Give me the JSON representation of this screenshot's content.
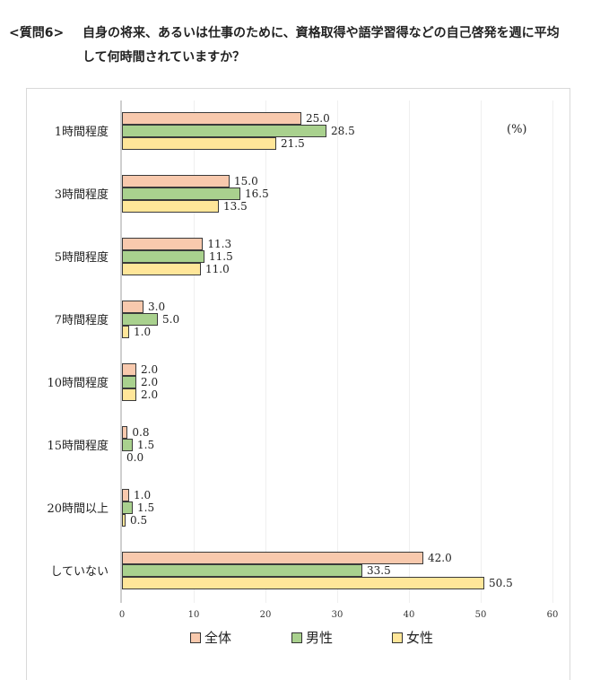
{
  "header": {
    "question_label": "<質問6>",
    "question_line1": "自身の将来、あるいは仕事のために、資格取得や語学習得などの自己啓発を週に平均",
    "question_line2": "して何時間されていますか？"
  },
  "chart": {
    "unit_label": "(%)",
    "colors": {
      "all": "#f8c9ad",
      "male": "#a9d18e",
      "female": "#ffe699"
    },
    "legend": [
      {
        "label": "全体",
        "color": "#f8c9ad"
      },
      {
        "label": "男性",
        "color": "#a9d18e"
      },
      {
        "label": "女性",
        "color": "#ffe699"
      }
    ],
    "ticks": [
      "0",
      "10",
      "20",
      "30",
      "40",
      "50",
      "60"
    ],
    "rows": [
      {
        "label": "1時間程度",
        "values": [
          "25.0",
          "28.5",
          "21.5"
        ]
      },
      {
        "label": "3時間程度",
        "values": [
          "15.0",
          "16.5",
          "13.5"
        ]
      },
      {
        "label": "5時間程度",
        "values": [
          "11.3",
          "11.5",
          "11.0"
        ]
      },
      {
        "label": "7時間程度",
        "values": [
          "3.0",
          "5.0",
          "1.0"
        ]
      },
      {
        "label": "10時間程度",
        "values": [
          "2.0",
          "2.0",
          "2.0"
        ]
      },
      {
        "label": "15時間程度",
        "values": [
          "0.8",
          "1.5",
          "0.0"
        ]
      },
      {
        "label": "20時間以上",
        "values": [
          "1.0",
          "1.5",
          "0.5"
        ]
      },
      {
        "label": "していない",
        "values": [
          "42.0",
          "33.5",
          "50.5"
        ]
      }
    ]
  },
  "chart_data": {
    "type": "bar",
    "orientation": "horizontal",
    "title": "自身の将来、あるいは仕事のために、資格取得や語学習得などの自己啓発を週に平均して何時間されていますか？",
    "categories": [
      "1時間程度",
      "3時間程度",
      "5時間程度",
      "7時間程度",
      "10時間程度",
      "15時間程度",
      "20時間以上",
      "していない"
    ],
    "series": [
      {
        "name": "全体",
        "color": "#f8c9ad",
        "values": [
          25.0,
          15.0,
          11.3,
          3.0,
          2.0,
          0.8,
          1.0,
          42.0
        ]
      },
      {
        "name": "男性",
        "color": "#a9d18e",
        "values": [
          28.5,
          16.5,
          11.5,
          5.0,
          2.0,
          1.5,
          1.5,
          33.5
        ]
      },
      {
        "name": "女性",
        "color": "#ffe699",
        "values": [
          21.5,
          13.5,
          11.0,
          1.0,
          2.0,
          0.0,
          0.5,
          50.5
        ]
      }
    ],
    "xlabel": "",
    "ylabel": "",
    "unit": "(%)",
    "xlim": [
      0,
      60
    ],
    "xticks": [
      0,
      10,
      20,
      30,
      40,
      50,
      60
    ],
    "grid": true,
    "legend_position": "bottom"
  }
}
